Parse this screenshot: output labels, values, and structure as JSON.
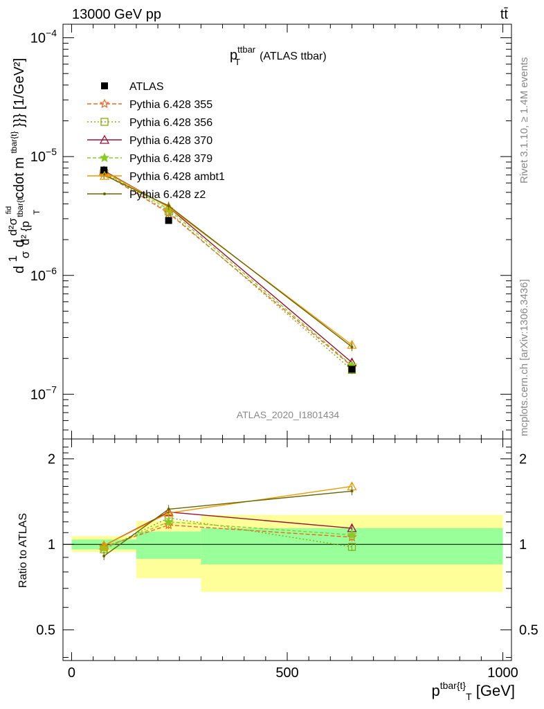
{
  "header": {
    "left": "13000 GeV pp",
    "right": "tt̄"
  },
  "side_labels": {
    "rivet": "Rivet 3.1.10, ≥ 1.4M events",
    "mcplots": "mcplots.cern.ch [arXiv:1306.3436]"
  },
  "chart_data": [
    {
      "type": "line",
      "panel": "main",
      "title": "p_T^ttbar (ATLAS ttbar)",
      "title_main": "p",
      "title_sup": "ttbar",
      "title_sub": "T",
      "title_rest": "(ATLAS ttbar)",
      "watermark": "ATLAS_2020_I1801434",
      "ylabel": "d(1/σ)dσ/d²{p_T^tbar{t}} cdot m^tbar{t}}} [1/GeV²]",
      "ylabel_parts": {
        "d1": "d",
        "frac1_num": "1",
        "frac1_den": "σ",
        "d2": "d",
        "frac2_num": "d²σ",
        "frac2_num_sup": "fid",
        "frac2_den": "d² {p",
        "frac2_den_sup": "tbar{t",
        "frac2_den_sub": "T",
        "cdot": "cdot m",
        "cdot_sup": "tbar{t}",
        "tail": "}}} [1/GeV²]"
      },
      "yscale": "log",
      "xlim": [
        -20,
        1020
      ],
      "ylim": [
        4.2e-08,
        0.00013
      ],
      "yticks": [
        {
          "value": 1e-07,
          "base": "10",
          "exp": "−7"
        },
        {
          "value": 1e-06,
          "base": "10",
          "exp": "−6"
        },
        {
          "value": 1e-05,
          "base": "10",
          "exp": "−5"
        },
        {
          "value": 0.0001,
          "base": "10",
          "exp": "−4"
        }
      ],
      "legend_position": "top-left",
      "x": [
        75,
        225,
        650
      ],
      "series": [
        {
          "name": "ATLAS",
          "color": "#000000",
          "marker": "square-filled",
          "dash": "none",
          "values": [
            7.7e-06,
            2.9e-06,
            1.62e-07
          ]
        },
        {
          "name": "Pythia 6.428 355",
          "color": "#ee6622",
          "marker": "star-open",
          "dash": "6,3",
          "values": [
            7.2e-06,
            3.35e-06,
            1.72e-07
          ]
        },
        {
          "name": "Pythia 6.428 356",
          "color": "#88aa11",
          "marker": "square-open",
          "dash": "2,3",
          "values": [
            7.3e-06,
            3.45e-06,
            1.6e-07
          ]
        },
        {
          "name": "Pythia 6.428 370",
          "color": "#991133",
          "marker": "triangle-open",
          "dash": "none",
          "values": [
            7.6e-06,
            3.75e-06,
            1.85e-07
          ]
        },
        {
          "name": "Pythia 6.428 379",
          "color": "#88cc22",
          "marker": "star-filled",
          "dash": "5,3",
          "values": [
            7.4e-06,
            3.6e-06,
            1.75e-07
          ]
        },
        {
          "name": "Pythia 6.428 ambt1",
          "color": "#ee9900",
          "marker": "triangle-open",
          "dash": "none",
          "values": [
            7.5e-06,
            3.75e-06,
            2.6e-07
          ]
        },
        {
          "name": "Pythia 6.428 z2",
          "color": "#666600",
          "marker": "dot",
          "dash": "none",
          "values": [
            7e-06,
            3.85e-06,
            2.5e-07
          ]
        }
      ]
    },
    {
      "type": "line",
      "panel": "ratio",
      "ylabel": "Ratio to ATLAS",
      "xlabel": "p_T^tbar{t}} [GeV]",
      "xlabel_parts": {
        "main": "p",
        "sup": "tbar{t}",
        "sub": "T",
        "tail": " [GeV]"
      },
      "yscale": "log",
      "xlim": [
        -20,
        1020
      ],
      "ylim": [
        0.39,
        2.35
      ],
      "yticks": [
        {
          "value": 0.5,
          "label": "0.5"
        },
        {
          "value": 1,
          "label": "1"
        },
        {
          "value": 2,
          "label": "2"
        }
      ],
      "xticks": [
        0,
        500,
        1000
      ],
      "uncertainty_bands": [
        {
          "x0": 0,
          "x1": 150,
          "inner": [
            0.96,
            1.04
          ],
          "outer": [
            0.94,
            1.07
          ]
        },
        {
          "x0": 150,
          "x1": 300,
          "inner": [
            0.89,
            1.11
          ],
          "outer": [
            0.76,
            1.21
          ]
        },
        {
          "x0": 300,
          "x1": 1000,
          "inner": [
            0.85,
            1.14
          ],
          "outer": [
            0.68,
            1.27
          ]
        }
      ],
      "band_colors": {
        "inner": "#99ff99",
        "outer": "#ffff99"
      },
      "x": [
        75,
        225,
        650
      ],
      "series": [
        {
          "name": "Pythia 6.428 355",
          "color": "#ee6622",
          "marker": "star-open",
          "dash": "6,3",
          "values": [
            0.98,
            1.17,
            1.06
          ]
        },
        {
          "name": "Pythia 6.428 356",
          "color": "#88aa11",
          "marker": "square-open",
          "dash": "2,3",
          "values": [
            0.96,
            1.24,
            0.98
          ]
        },
        {
          "name": "Pythia 6.428 370",
          "color": "#991133",
          "marker": "triangle-open",
          "dash": "none",
          "values": [
            0.99,
            1.3,
            1.14
          ]
        },
        {
          "name": "Pythia 6.428 379",
          "color": "#88cc22",
          "marker": "star-filled",
          "dash": "5,3",
          "values": [
            0.97,
            1.2,
            1.08
          ]
        },
        {
          "name": "Pythia 6.428 ambt1",
          "color": "#ee9900",
          "marker": "triangle-open",
          "dash": "none",
          "values": [
            0.99,
            1.29,
            1.6
          ]
        },
        {
          "name": "Pythia 6.428 z2",
          "color": "#666600",
          "marker": "dot",
          "dash": "none",
          "values": [
            0.91,
            1.33,
            1.54
          ]
        }
      ]
    }
  ]
}
